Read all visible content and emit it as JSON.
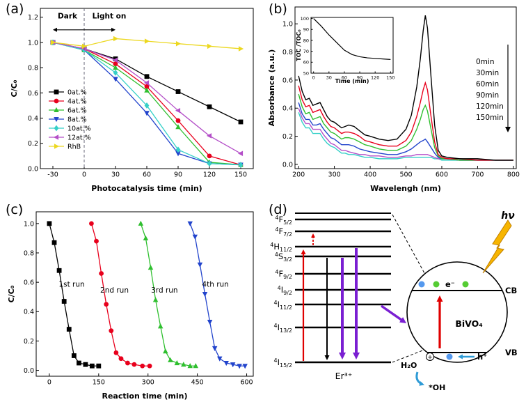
{
  "figure": {
    "background": "#ffffff",
    "panel_labels": {
      "a": "(a)",
      "b": "(b)",
      "c": "(c)",
      "d": "(d)"
    }
  },
  "chart_data": [
    {
      "id": "panel-a",
      "type": "line",
      "title": "",
      "xlabel": "Photocatalysis time (min)",
      "ylabel": "C/C₀",
      "xlim": [
        -42,
        162
      ],
      "ylim": [
        0,
        1.27
      ],
      "xticks": [
        -30,
        0,
        30,
        60,
        90,
        120,
        150
      ],
      "yticks": [
        "0.0",
        "0.2",
        "0.4",
        "0.6",
        "0.8",
        "1.0",
        "1.2"
      ],
      "grid": false,
      "legend_position": "middle-left",
      "x": [
        -30,
        0,
        30,
        60,
        90,
        120,
        150
      ],
      "series": [
        {
          "name": "0at.%",
          "color": "#000000",
          "marker": "square",
          "values": [
            1.0,
            0.95,
            0.87,
            0.73,
            0.61,
            0.49,
            0.37
          ]
        },
        {
          "name": "4at.%",
          "color": "#e8001c",
          "marker": "circle",
          "values": [
            1.0,
            0.95,
            0.83,
            0.65,
            0.38,
            0.1,
            0.03
          ]
        },
        {
          "name": "6at.%",
          "color": "#2fbf2f",
          "marker": "triangle-up",
          "values": [
            1.0,
            0.94,
            0.8,
            0.62,
            0.33,
            0.05,
            0.03
          ]
        },
        {
          "name": "8at.%",
          "color": "#2244cc",
          "marker": "triangle-down",
          "values": [
            1.0,
            0.94,
            0.71,
            0.44,
            0.12,
            0.04,
            0.03
          ]
        },
        {
          "name": "10at.%",
          "color": "#35d0c8",
          "marker": "diamond",
          "values": [
            1.0,
            0.94,
            0.76,
            0.5,
            0.15,
            0.04,
            0.03
          ]
        },
        {
          "name": "12at.%",
          "color": "#b44fc8",
          "marker": "triangle-left",
          "values": [
            1.0,
            0.95,
            0.86,
            0.68,
            0.46,
            0.26,
            0.12
          ]
        },
        {
          "name": "RhB",
          "color": "#ecd820",
          "marker": "triangle-right",
          "values": [
            1.0,
            0.97,
            1.03,
            1.01,
            0.99,
            0.97,
            0.95
          ]
        }
      ],
      "annotations": {
        "dark": {
          "text": "Dark",
          "x": -16,
          "y": 1.19
        },
        "light": {
          "text": "Light on",
          "x": 24,
          "y": 1.19
        },
        "arrow_span": [
          -30,
          30
        ],
        "arrow_y": 1.1,
        "vline_x": 0
      }
    },
    {
      "id": "panel-b",
      "type": "line",
      "title": "",
      "xlabel": "Wavelengh (nm)",
      "ylabel": "Absorbance (a.u.)",
      "xlim": [
        190,
        808
      ],
      "ylim": [
        -0.03,
        1.12
      ],
      "xticks": [
        200,
        300,
        400,
        500,
        600,
        700,
        800
      ],
      "yticks": [
        "0.0",
        "0.2",
        "0.4",
        "0.6",
        "0.8",
        "1.0"
      ],
      "grid": false,
      "time_labels": [
        "0min",
        "30min",
        "60min",
        "90min",
        "120min",
        "150min"
      ],
      "x": [
        200,
        210,
        220,
        230,
        240,
        250,
        260,
        270,
        280,
        290,
        300,
        310,
        320,
        330,
        340,
        355,
        370,
        385,
        400,
        425,
        450,
        475,
        500,
        515,
        530,
        540,
        548,
        554,
        560,
        570,
        580,
        590,
        600,
        615,
        650,
        700,
        750,
        800
      ],
      "series": [
        {
          "name": "0min",
          "color": "#000000",
          "values": [
            0.63,
            0.52,
            0.46,
            0.47,
            0.42,
            0.43,
            0.44,
            0.39,
            0.34,
            0.31,
            0.3,
            0.28,
            0.26,
            0.27,
            0.28,
            0.27,
            0.24,
            0.21,
            0.2,
            0.18,
            0.17,
            0.18,
            0.25,
            0.35,
            0.55,
            0.75,
            0.95,
            1.06,
            0.97,
            0.62,
            0.28,
            0.1,
            0.06,
            0.05,
            0.04,
            0.04,
            0.03,
            0.03
          ]
        },
        {
          "name": "30min",
          "color": "#e8001c",
          "values": [
            0.56,
            0.46,
            0.41,
            0.42,
            0.37,
            0.38,
            0.39,
            0.34,
            0.3,
            0.27,
            0.26,
            0.24,
            0.22,
            0.23,
            0.23,
            0.22,
            0.2,
            0.17,
            0.16,
            0.14,
            0.13,
            0.13,
            0.17,
            0.23,
            0.34,
            0.44,
            0.53,
            0.58,
            0.53,
            0.34,
            0.16,
            0.07,
            0.05,
            0.04,
            0.04,
            0.03,
            0.03,
            0.03
          ]
        },
        {
          "name": "60min",
          "color": "#2fbf2f",
          "values": [
            0.5,
            0.41,
            0.36,
            0.37,
            0.32,
            0.33,
            0.34,
            0.29,
            0.26,
            0.23,
            0.22,
            0.2,
            0.18,
            0.19,
            0.19,
            0.18,
            0.16,
            0.14,
            0.13,
            0.11,
            0.1,
            0.1,
            0.13,
            0.17,
            0.25,
            0.32,
            0.39,
            0.42,
            0.38,
            0.25,
            0.12,
            0.06,
            0.04,
            0.04,
            0.03,
            0.03,
            0.03,
            0.03
          ]
        },
        {
          "name": "90min",
          "color": "#2244cc",
          "values": [
            0.44,
            0.36,
            0.32,
            0.32,
            0.28,
            0.28,
            0.29,
            0.25,
            0.22,
            0.19,
            0.18,
            0.16,
            0.14,
            0.14,
            0.14,
            0.13,
            0.11,
            0.1,
            0.09,
            0.08,
            0.07,
            0.07,
            0.09,
            0.11,
            0.14,
            0.16,
            0.17,
            0.18,
            0.16,
            0.12,
            0.08,
            0.05,
            0.04,
            0.04,
            0.03,
            0.03,
            0.03,
            0.03
          ]
        },
        {
          "name": "120min",
          "color": "#b44fc8",
          "values": [
            0.4,
            0.33,
            0.29,
            0.29,
            0.25,
            0.25,
            0.25,
            0.21,
            0.18,
            0.15,
            0.14,
            0.12,
            0.1,
            0.1,
            0.09,
            0.08,
            0.07,
            0.07,
            0.06,
            0.06,
            0.05,
            0.05,
            0.06,
            0.06,
            0.07,
            0.07,
            0.07,
            0.07,
            0.07,
            0.06,
            0.05,
            0.04,
            0.04,
            0.04,
            0.03,
            0.03,
            0.03,
            0.03
          ]
        },
        {
          "name": "150min",
          "color": "#35d0c8",
          "values": [
            0.37,
            0.3,
            0.26,
            0.26,
            0.22,
            0.22,
            0.22,
            0.18,
            0.15,
            0.13,
            0.12,
            0.1,
            0.08,
            0.08,
            0.07,
            0.07,
            0.06,
            0.05,
            0.05,
            0.04,
            0.04,
            0.04,
            0.05,
            0.05,
            0.05,
            0.05,
            0.05,
            0.05,
            0.05,
            0.05,
            0.04,
            0.04,
            0.03,
            0.03,
            0.03,
            0.03,
            0.03,
            0.03
          ]
        }
      ]
    },
    {
      "id": "panel-b-inset",
      "type": "line",
      "title": "",
      "xlabel": "Time (min)",
      "ylabel": "TOC /TOC₀",
      "xlim": [
        -5,
        155
      ],
      "ylim": [
        50,
        101
      ],
      "xticks": [
        0,
        30,
        60,
        90,
        120,
        150
      ],
      "yticks": [
        50,
        60,
        70,
        80,
        90,
        100
      ],
      "grid": false,
      "x": [
        0,
        15,
        30,
        45,
        60,
        75,
        90,
        105,
        120,
        135,
        150
      ],
      "series": [
        {
          "name": "TOC",
          "color": "#000000",
          "values": [
            100,
            93,
            85,
            78,
            71,
            67,
            65,
            64,
            63.5,
            63,
            62.5
          ]
        }
      ]
    },
    {
      "id": "panel-c",
      "type": "line",
      "title": "",
      "xlabel": "Reaction time (min)",
      "ylabel": "C/C₀",
      "xlim": [
        -40,
        620
      ],
      "ylim": [
        -0.04,
        1.08
      ],
      "xticks": [
        0,
        150,
        300,
        450,
        600
      ],
      "yticks": [
        "0.0",
        "0.2",
        "0.4",
        "0.6",
        "0.8",
        "1.0"
      ],
      "grid": false,
      "series": [
        {
          "name": "1st run",
          "color": "#000000",
          "marker": "square",
          "x": [
            0,
            15,
            30,
            45,
            60,
            75,
            90,
            110,
            130,
            150
          ],
          "values": [
            1.0,
            0.87,
            0.68,
            0.47,
            0.28,
            0.1,
            0.05,
            0.04,
            0.03,
            0.03
          ]
        },
        {
          "name": "2nd run",
          "color": "#e8001c",
          "marker": "circle",
          "x": [
            128,
            143,
            158,
            173,
            188,
            203,
            218,
            238,
            258,
            283,
            305
          ],
          "values": [
            1.0,
            0.88,
            0.66,
            0.45,
            0.27,
            0.12,
            0.08,
            0.05,
            0.04,
            0.03,
            0.03
          ]
        },
        {
          "name": "3rd run",
          "color": "#2fbf2f",
          "marker": "triangle-up",
          "x": [
            278,
            293,
            308,
            323,
            338,
            353,
            368,
            388,
            408,
            428,
            445
          ],
          "values": [
            1.0,
            0.9,
            0.7,
            0.48,
            0.3,
            0.13,
            0.07,
            0.05,
            0.04,
            0.03,
            0.03
          ]
        },
        {
          "name": "4th run",
          "color": "#2244cc",
          "marker": "triangle-down",
          "x": [
            428,
            443,
            458,
            473,
            488,
            503,
            518,
            538,
            558,
            578,
            595
          ],
          "values": [
            1.0,
            0.91,
            0.72,
            0.52,
            0.33,
            0.15,
            0.08,
            0.05,
            0.04,
            0.03,
            0.03
          ]
        }
      ],
      "run_labels": [
        {
          "text": "1st run",
          "x": 68,
          "y": 0.57
        },
        {
          "text": "2nd run",
          "x": 198,
          "y": 0.53
        },
        {
          "text": "3rd run",
          "x": 350,
          "y": 0.53
        },
        {
          "text": "4th run",
          "x": 505,
          "y": 0.57
        }
      ]
    }
  ],
  "diagram_d": {
    "levels": [
      {
        "sup": "4",
        "base": "F",
        "sub": "5/2"
      },
      {
        "sup": "4",
        "base": "F",
        "sub": "7/2"
      },
      {
        "sup": "4",
        "base": "H",
        "sub": "11/2"
      },
      {
        "sup": "4",
        "base": "S",
        "sub": "3/2"
      },
      {
        "sup": "4",
        "base": "F",
        "sub": "9/2"
      },
      {
        "sup": "4",
        "base": "I",
        "sub": "9/2"
      },
      {
        "sup": "4",
        "base": "I",
        "sub": "11/2"
      },
      {
        "sup": "4",
        "base": "I",
        "sub": "13/2"
      },
      {
        "sup": "4",
        "base": "I",
        "sub": "15/2"
      }
    ],
    "ion_label": "Er³⁺",
    "semiconductor": "BiVO₄",
    "cb_label": "CB",
    "vb_label": "VB",
    "electron_label": "e⁻",
    "hole_label": "h⁺",
    "water_label": "H₂O",
    "radical_label": "*OH",
    "photon_label": "hν",
    "colors": {
      "excitation": "#e00000",
      "nonradiative": "#000000",
      "emission": "#7a1fd2",
      "electron": "#55cc33",
      "hole_dot": "#5599ee",
      "water_arrow": "#2e9bd6",
      "bolt": "#f7b500"
    }
  }
}
